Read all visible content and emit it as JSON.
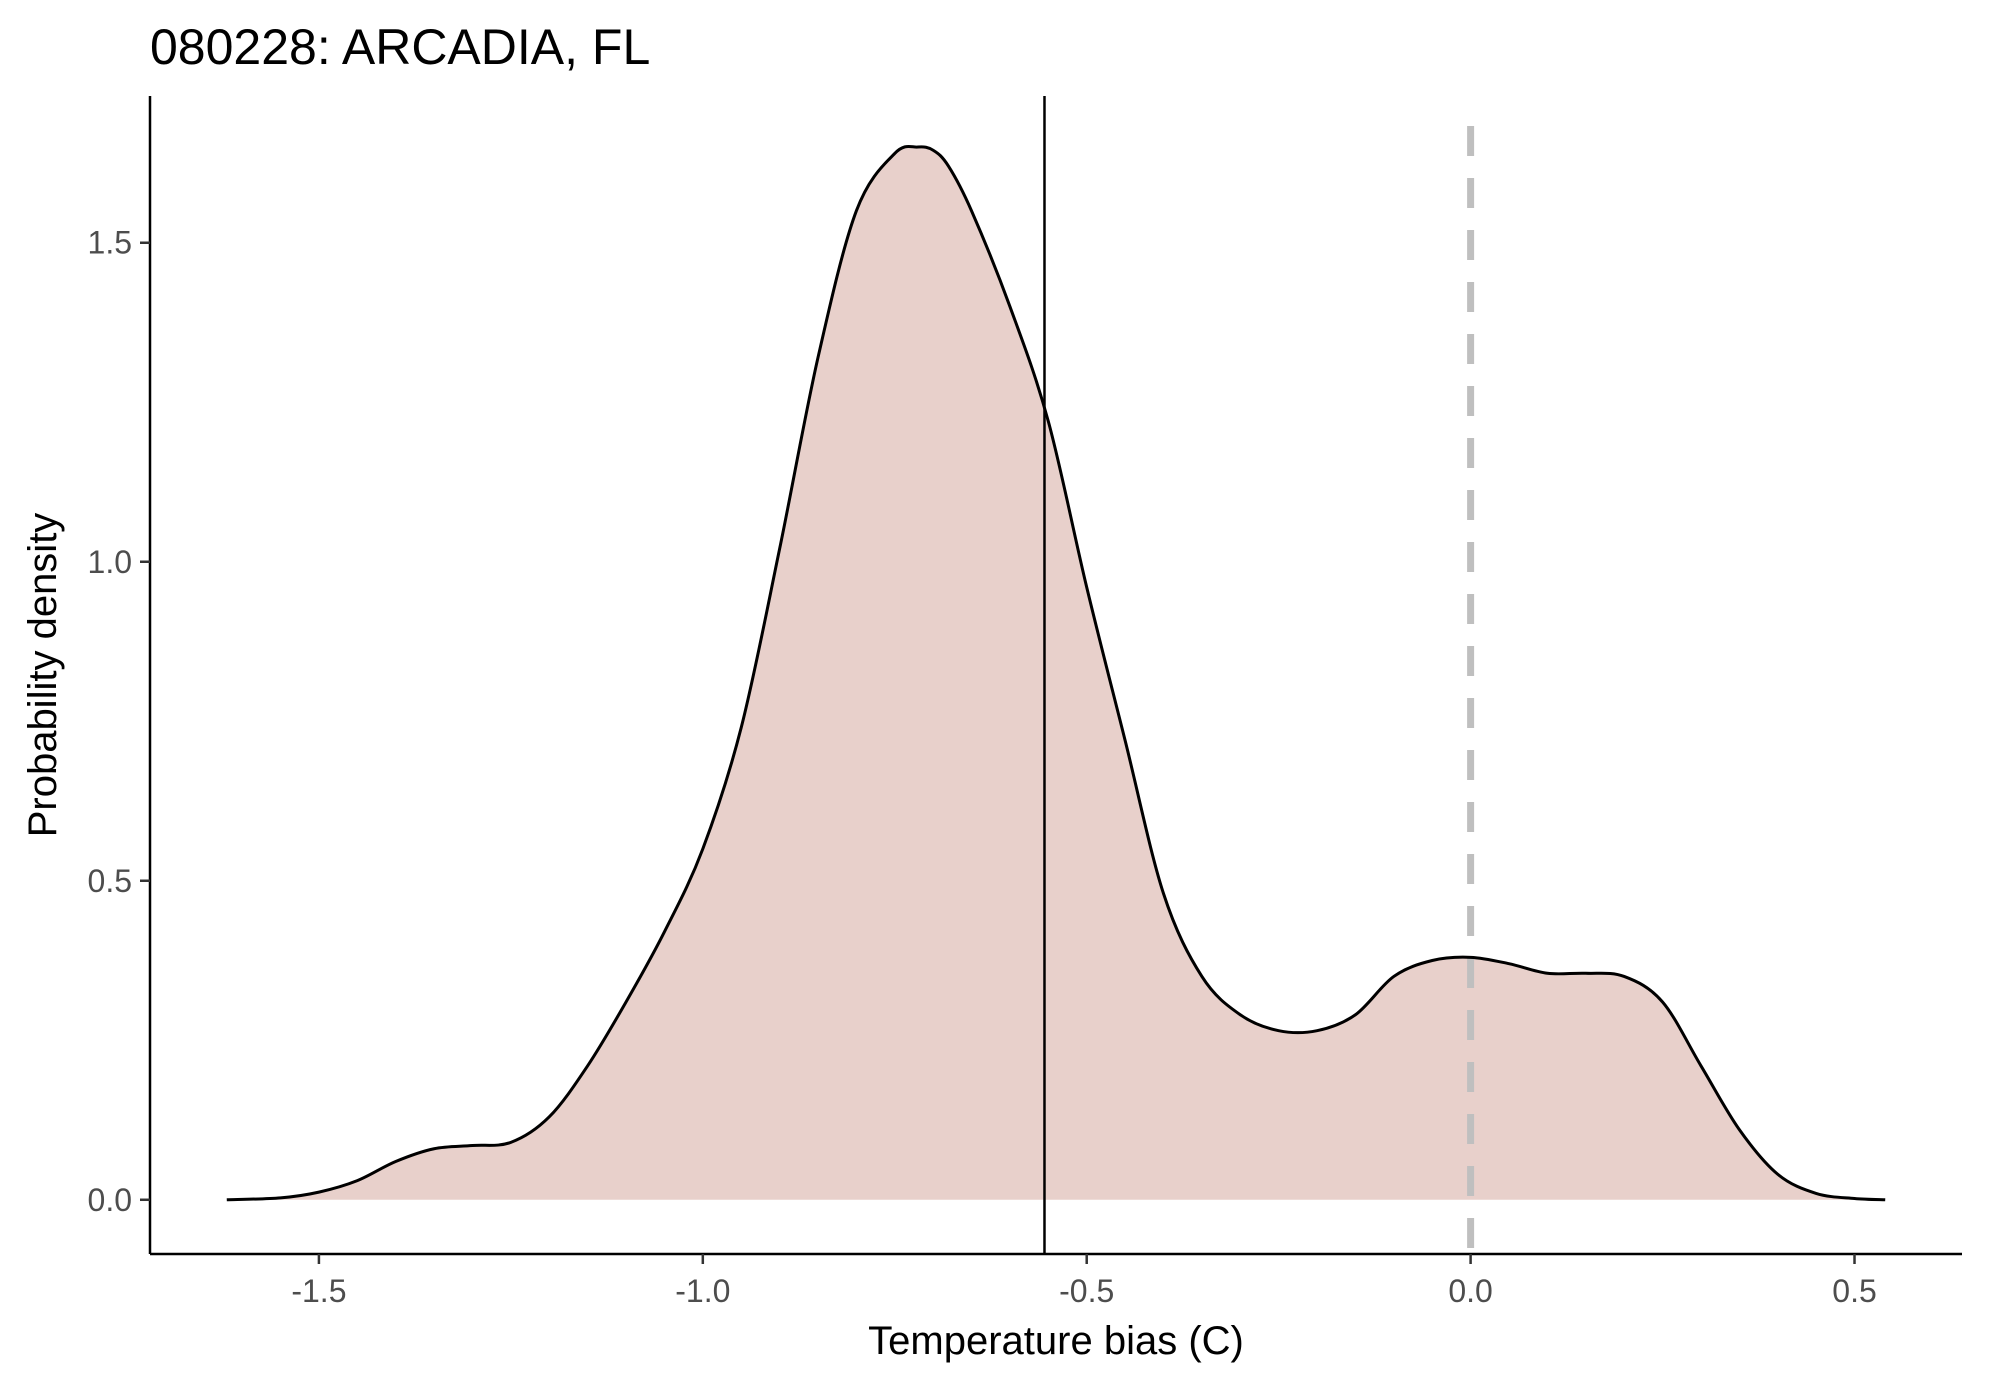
{
  "chart_data": {
    "type": "area",
    "title": "080228: ARCADIA, FL",
    "xlabel": "Temperature bias (C)",
    "ylabel": "Probability density",
    "xlim": [
      -1.72,
      0.64
    ],
    "ylim": [
      -0.085,
      1.73
    ],
    "x_ticks": [
      -1.5,
      -1.0,
      -0.5,
      0.0,
      0.5
    ],
    "x_tick_labels": [
      "-1.5",
      "-1.0",
      "-0.5",
      "0.0",
      "0.5"
    ],
    "y_ticks": [
      0.0,
      0.5,
      1.0,
      1.5
    ],
    "y_tick_labels": [
      "0.0",
      "0.5",
      "1.0",
      "1.5"
    ],
    "grid": false,
    "fill_color": "#e8d0cb",
    "line_color": "#000000",
    "series": [
      {
        "x": [
          -1.62,
          -1.55,
          -1.5,
          -1.45,
          -1.4,
          -1.35,
          -1.3,
          -1.25,
          -1.2,
          -1.15,
          -1.1,
          -1.05,
          -1.0,
          -0.95,
          -0.9,
          -0.85,
          -0.8,
          -0.75,
          -0.72,
          -0.7,
          -0.68,
          -0.65,
          -0.6,
          -0.55,
          -0.5,
          -0.45,
          -0.4,
          -0.35,
          -0.3,
          -0.25,
          -0.2,
          -0.15,
          -0.1,
          -0.05,
          0.0,
          0.05,
          0.1,
          0.15,
          0.2,
          0.25,
          0.3,
          0.35,
          0.4,
          0.45,
          0.5,
          0.54
        ],
        "y": [
          0.0,
          0.003,
          0.012,
          0.03,
          0.06,
          0.08,
          0.085,
          0.09,
          0.13,
          0.21,
          0.31,
          0.42,
          0.55,
          0.74,
          1.02,
          1.32,
          1.55,
          1.64,
          1.65,
          1.645,
          1.62,
          1.55,
          1.4,
          1.22,
          0.96,
          0.72,
          0.48,
          0.35,
          0.29,
          0.265,
          0.265,
          0.29,
          0.35,
          0.375,
          0.38,
          0.37,
          0.355,
          0.355,
          0.35,
          0.31,
          0.21,
          0.11,
          0.04,
          0.01,
          0.002,
          0.0
        ]
      }
    ],
    "reference_lines": [
      {
        "x": -0.555,
        "style": "solid",
        "color": "#000000"
      },
      {
        "x": 0.0,
        "style": "dashed",
        "color": "#bfbfbf"
      }
    ]
  }
}
